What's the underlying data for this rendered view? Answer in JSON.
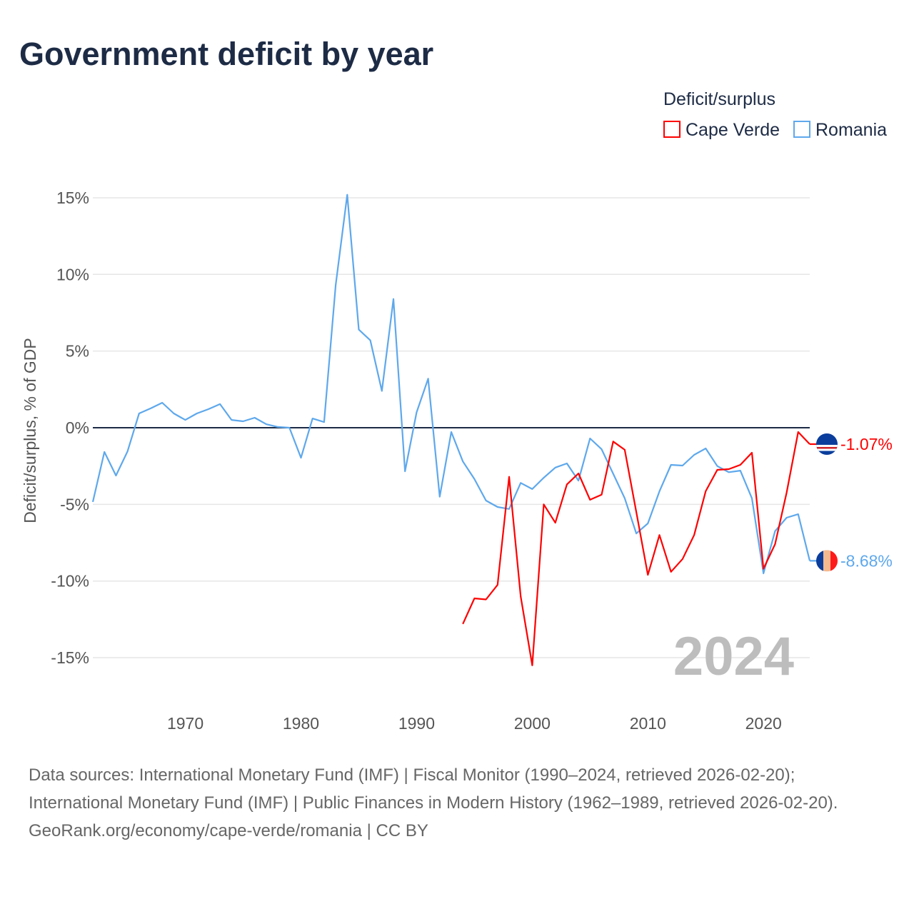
{
  "title": "Government deficit by year",
  "legend": {
    "title": "Deficit/surplus",
    "entries": [
      {
        "label": "Cape Verde",
        "color": "#ff0000"
      },
      {
        "label": "Romania",
        "color": "#5ea8ec"
      }
    ]
  },
  "chart_data": {
    "type": "line",
    "title": "Government deficit by year",
    "xlabel": "",
    "ylabel": "Deficit/surplus, % of GDP",
    "xlim": [
      1962,
      2024
    ],
    "ylim": [
      -17.5,
      17.5
    ],
    "x_ticks": [
      1970,
      1980,
      1990,
      2000,
      2010,
      2020
    ],
    "y_ticks": [
      15,
      10,
      5,
      0,
      -5,
      -10,
      -15
    ],
    "y_tick_labels": [
      "15%",
      "10%",
      "5%",
      "0%",
      "-5%",
      "-10%",
      "-15%"
    ],
    "grid": true,
    "legend_position": "top-right",
    "year_label": "2024",
    "series": [
      {
        "name": "Cape Verde",
        "color": "#ff0000",
        "start_year": 1994,
        "values": [
          -12.8,
          -11.13,
          -11.2,
          -10.25,
          -3.2,
          -11.0,
          -15.5,
          -5.0,
          -6.2,
          -3.7,
          -2.98,
          -4.7,
          -4.37,
          -0.9,
          -1.44,
          -5.5,
          -9.6,
          -7.0,
          -9.4,
          -8.56,
          -7.0,
          -4.14,
          -2.75,
          -2.7,
          -2.42,
          -1.63,
          -9.2,
          -7.6,
          -4.24,
          -0.28,
          -1.07
        ],
        "end_label": "-1.07%"
      },
      {
        "name": "Romania",
        "color": "#5ea8ec",
        "start_year": 1962,
        "values": [
          -4.84,
          -1.58,
          -3.12,
          -1.54,
          0.93,
          1.26,
          1.63,
          0.93,
          0.51,
          0.93,
          1.21,
          1.54,
          0.51,
          0.42,
          0.65,
          0.23,
          0.05,
          0.0,
          -1.96,
          0.6,
          0.37,
          9.3,
          15.2,
          6.4,
          5.7,
          2.4,
          8.4,
          -2.84,
          1.0,
          3.2,
          -4.5,
          -0.28,
          -2.2,
          -3.35,
          -4.75,
          -5.17,
          -5.3,
          -3.6,
          -4.0,
          -3.26,
          -2.6,
          -2.33,
          -3.45,
          -0.7,
          -1.4,
          -3.0,
          -4.6,
          -6.9,
          -6.24,
          -4.15,
          -2.42,
          -2.47,
          -1.77,
          -1.35,
          -2.5,
          -2.9,
          -2.8,
          -4.6,
          -9.5,
          -6.75,
          -5.87,
          -5.64,
          -8.68
        ],
        "end_label": "-8.68%"
      }
    ]
  },
  "footer": {
    "sources": "Data sources: International Monetary Fund (IMF) | Fiscal Monitor (1990–2024, retrieved 2026-02-20); International Monetary Fund (IMF) | Public Finances in Modern History (1962–1989, retrieved 2026-02-20).",
    "credit": "GeoRank.org/economy/cape-verde/romania | CC BY"
  }
}
